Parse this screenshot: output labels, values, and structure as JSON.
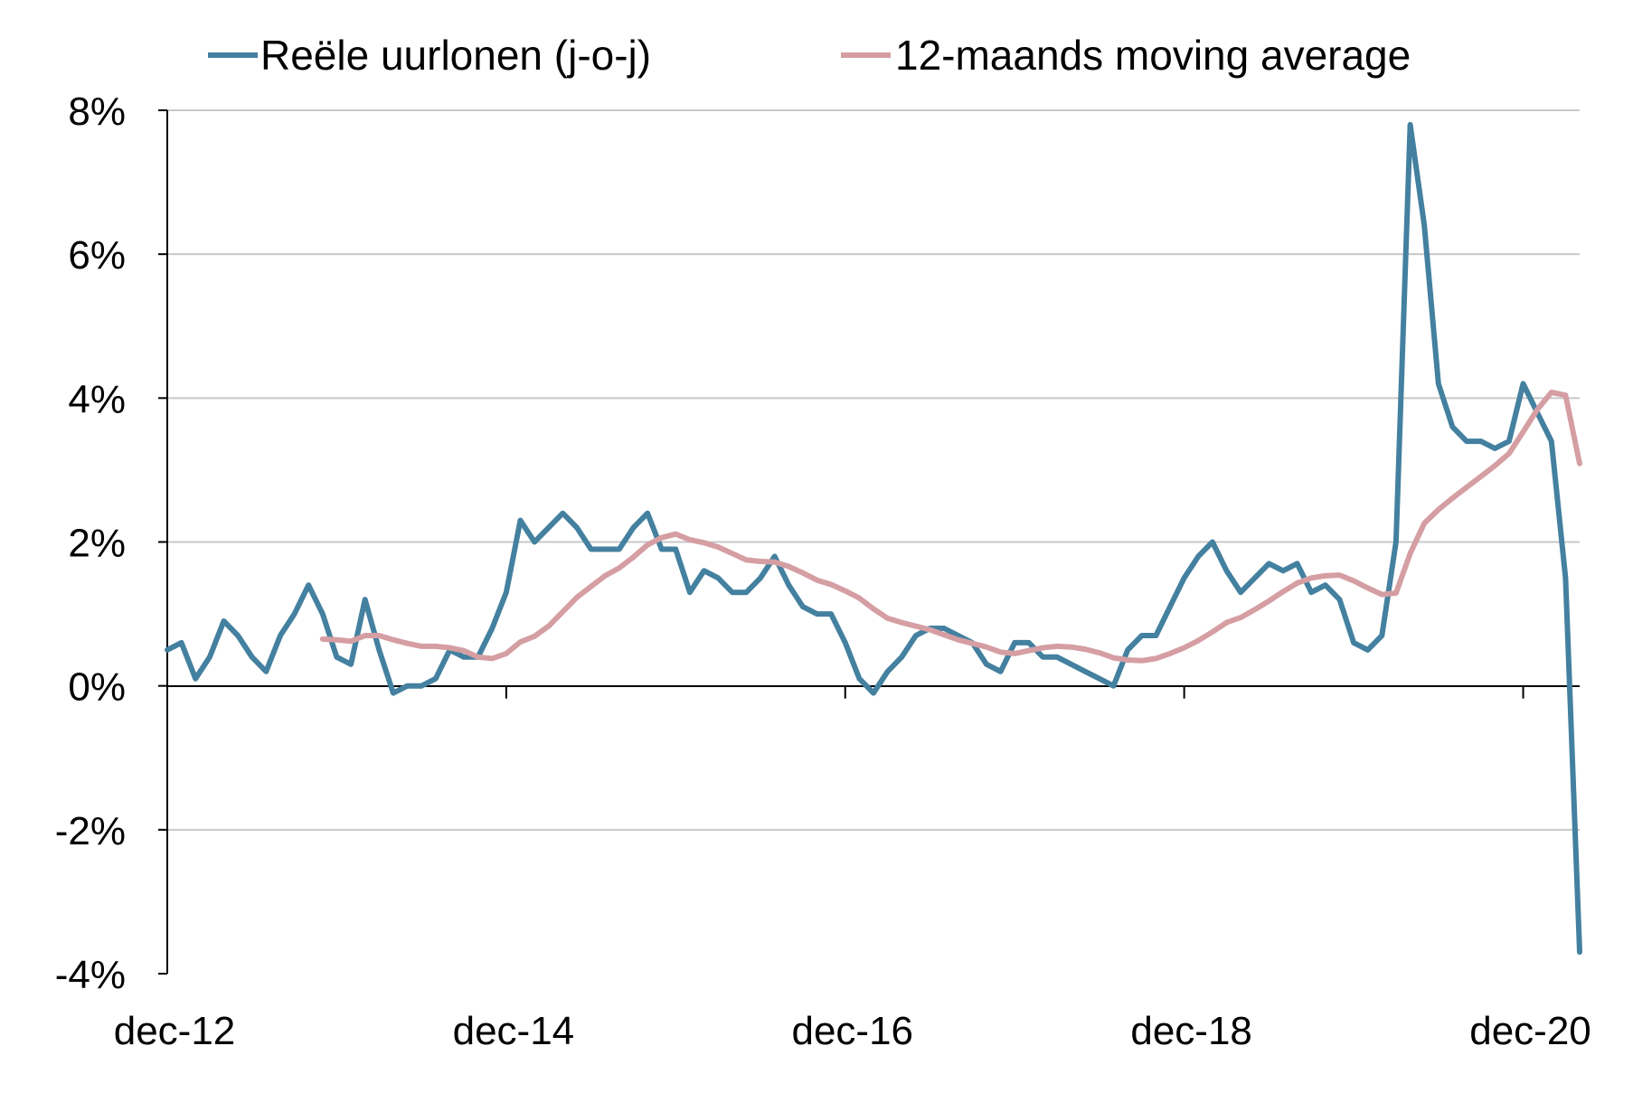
{
  "chart_data": {
    "type": "line",
    "title": "",
    "xlabel": "",
    "ylabel": "",
    "x_tick_labels": [
      "dec-12",
      "dec-14",
      "dec-16",
      "dec-18",
      "dec-20"
    ],
    "x_range": [
      "dec-12",
      "apr-21"
    ],
    "y_tick_labels": [
      "8%",
      "6%",
      "4%",
      "2%",
      "0%",
      "-2%",
      "-4%"
    ],
    "y_ticks": [
      8,
      6,
      4,
      2,
      0,
      -2,
      -4
    ],
    "ylim": [
      -4,
      8
    ],
    "y_unit": "%",
    "grid": true,
    "legend_position": "top",
    "series": [
      {
        "name": "Reële uurlonen (j-o-j)",
        "color": "#44809f",
        "start_month": "dec-12",
        "values": [
          0.5,
          0.6,
          0.1,
          0.4,
          0.9,
          0.7,
          0.4,
          0.2,
          0.7,
          1.0,
          1.4,
          1.0,
          0.4,
          0.3,
          1.2,
          0.5,
          -0.1,
          0.0,
          0.0,
          0.1,
          0.5,
          0.4,
          0.4,
          0.8,
          1.3,
          2.3,
          2.0,
          2.2,
          2.4,
          2.2,
          1.9,
          1.9,
          1.9,
          2.2,
          2.4,
          1.9,
          1.9,
          1.3,
          1.6,
          1.5,
          1.3,
          1.3,
          1.5,
          1.8,
          1.4,
          1.1,
          1.0,
          1.0,
          0.6,
          0.1,
          -0.1,
          0.2,
          0.4,
          0.7,
          0.8,
          0.8,
          0.7,
          0.6,
          0.3,
          0.2,
          0.6,
          0.6,
          0.4,
          0.4,
          0.3,
          0.2,
          0.1,
          0.0,
          0.5,
          0.7,
          0.7,
          1.1,
          1.5,
          1.8,
          2.0,
          1.6,
          1.3,
          1.5,
          1.7,
          1.6,
          1.7,
          1.3,
          1.4,
          1.2,
          0.6,
          0.5,
          0.7,
          2.0,
          7.8,
          6.4,
          4.2,
          3.6,
          3.4,
          3.4,
          3.3,
          3.4,
          4.2,
          3.8,
          3.4,
          1.5,
          -3.7
        ]
      },
      {
        "name": "12-maands moving average",
        "color": "#d59ea3",
        "start_month": "nov-13",
        "values": [
          0.65,
          0.64,
          0.62,
          0.7,
          0.7,
          0.64,
          0.59,
          0.55,
          0.55,
          0.53,
          0.49,
          0.4,
          0.38,
          0.45,
          0.61,
          0.69,
          0.83,
          1.03,
          1.23,
          1.38,
          1.53,
          1.64,
          1.79,
          1.96,
          2.06,
          2.11,
          2.03,
          1.99,
          1.93,
          1.84,
          1.75,
          1.73,
          1.72,
          1.66,
          1.57,
          1.47,
          1.41,
          1.32,
          1.22,
          1.07,
          0.94,
          0.88,
          0.83,
          0.78,
          0.71,
          0.64,
          0.59,
          0.54,
          0.47,
          0.45,
          0.49,
          0.53,
          0.55,
          0.54,
          0.51,
          0.46,
          0.39,
          0.36,
          0.35,
          0.38,
          0.45,
          0.53,
          0.63,
          0.75,
          0.88,
          0.95,
          1.06,
          1.18,
          1.31,
          1.43,
          1.5,
          1.53,
          1.54,
          1.46,
          1.36,
          1.27,
          1.29,
          1.84,
          2.26,
          2.45,
          2.61,
          2.76,
          2.91,
          3.06,
          3.23,
          3.53,
          3.84,
          4.08,
          4.04,
          3.09
        ]
      }
    ]
  }
}
